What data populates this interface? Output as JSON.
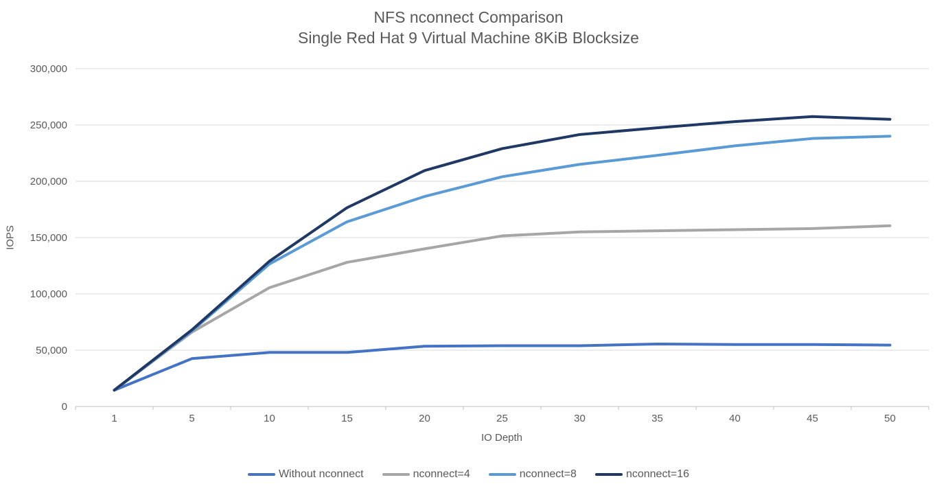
{
  "title": {
    "line1": "NFS nconnect Comparison",
    "line2": "Single Red Hat 9 Virtual Machine 8KiB Blocksize"
  },
  "colors": {
    "text": "#595959",
    "gridline": "#D9D9D9",
    "axis_line": "#BFBFBF",
    "background": "#FFFFFF",
    "series_without_nconnect": "#4472C4",
    "series_nconnect_4": "#A6A6A6",
    "series_nconnect_8": "#5B9BD5",
    "series_nconnect_16": "#1F3864"
  },
  "chart_data": {
    "type": "line",
    "title": "NFS nconnect Comparison — Single Red Hat 9 Virtual Machine 8KiB Blocksize",
    "xlabel": "IO Depth",
    "ylabel": "IOPS",
    "categories": [
      1,
      5,
      10,
      15,
      20,
      25,
      30,
      35,
      40,
      45,
      50
    ],
    "x_tick_labels": [
      "1",
      "5",
      "10",
      "15",
      "20",
      "25",
      "30",
      "35",
      "40",
      "45",
      "50"
    ],
    "ylim": [
      0,
      300000
    ],
    "y_ticks": [
      0,
      50000,
      100000,
      150000,
      200000,
      250000,
      300000
    ],
    "y_tick_labels": [
      "0",
      "50,000",
      "100,000",
      "150,000",
      "200,000",
      "250,000",
      "300,000"
    ],
    "grid": true,
    "legend_position": "bottom",
    "series": [
      {
        "name": "Without nconnect",
        "color": "#4472C4",
        "values": [
          14500,
          42500,
          48000,
          48000,
          53500,
          54000,
          54000,
          55500,
          55000,
          55000,
          54500
        ]
      },
      {
        "name": "nconnect=4",
        "color": "#A6A6A6",
        "values": [
          14500,
          66000,
          105500,
          128000,
          140000,
          151500,
          155000,
          156000,
          157000,
          158000,
          160500
        ]
      },
      {
        "name": "nconnect=8",
        "color": "#5B9BD5",
        "values": [
          14500,
          67000,
          126500,
          164000,
          186500,
          204000,
          215000,
          223000,
          231500,
          238000,
          240000
        ]
      },
      {
        "name": "nconnect=16",
        "color": "#1F3864",
        "values": [
          14500,
          68000,
          129000,
          176500,
          209500,
          229000,
          241500,
          247500,
          253000,
          257500,
          255000
        ]
      }
    ]
  }
}
